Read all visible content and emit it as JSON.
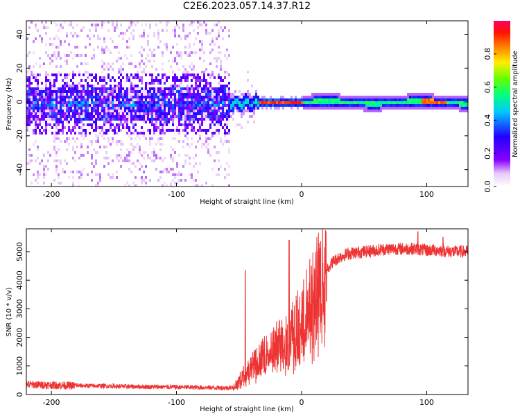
{
  "title": "C2E6.2023.057.14.37.R12",
  "chart_data": [
    {
      "type": "heatmap",
      "xlabel": "Height of straight line (km)",
      "ylabel": "Frequency (Hz)",
      "xlim": [
        -220,
        133
      ],
      "ylim": [
        -50,
        48
      ],
      "x_ticks": [
        -200,
        -100,
        0,
        100
      ],
      "y_ticks": [
        -40,
        -20,
        0,
        20,
        40
      ],
      "colorbar": {
        "label": "Normalized spectral amplitude",
        "range": [
          0,
          1
        ],
        "ticks": [
          0.0,
          0.2,
          0.4,
          0.6,
          0.8
        ]
      },
      "regions": [
        {
          "x_range": [
            -220,
            -58
          ],
          "description": "noise",
          "band_halfwidth_hz": 10,
          "scatter_halfwidth_hz": 48,
          "amplitude": 0.15
        },
        {
          "x_range": [
            -58,
            -35
          ],
          "description": "transition",
          "band_halfwidth_hz": 4,
          "amplitude": 0.4
        },
        {
          "x_range": [
            -35,
            0
          ],
          "description": "strong narrow line",
          "band_halfwidth_hz": 2,
          "amplitude": 0.9
        },
        {
          "x_range": [
            0,
            133
          ],
          "description": "steady line",
          "band_halfwidth_hz": 3,
          "amplitude": 0.5
        }
      ]
    },
    {
      "type": "line",
      "xlabel": "Height of straight line (km)",
      "ylabel": "SNR (10 * v/v)",
      "xlim": [
        -220,
        133
      ],
      "ylim": [
        0,
        5800
      ],
      "x_ticks": [
        -200,
        -100,
        0,
        100
      ],
      "y_ticks": [
        0,
        1000,
        2000,
        3000,
        4000,
        5000
      ],
      "color": "#ee3333",
      "series": [
        {
          "name": "SNR",
          "x": [
            -220,
            -200,
            -180,
            -160,
            -140,
            -120,
            -100,
            -80,
            -60,
            -55,
            -50,
            -45,
            -40,
            -35,
            -30,
            -25,
            -20,
            -15,
            -10,
            -5,
            0,
            5,
            10,
            15,
            20,
            25,
            30,
            35,
            40,
            50,
            60,
            70,
            80,
            90,
            100,
            110,
            120,
            133
          ],
          "y": [
            350,
            330,
            310,
            300,
            280,
            270,
            260,
            245,
            230,
            250,
            500,
            800,
            1000,
            1200,
            1400,
            1600,
            1800,
            2000,
            2200,
            2400,
            2700,
            3200,
            3700,
            4100,
            4400,
            4650,
            4800,
            4900,
            4950,
            5000,
            5050,
            5100,
            5100,
            5100,
            5050,
            5050,
            5000,
            5000
          ]
        }
      ],
      "spikes": [
        {
          "x": -45,
          "y": 4350
        },
        {
          "x": -10,
          "y": 5400
        },
        {
          "x": 93,
          "y": 5700
        },
        {
          "x": 113,
          "y": 5500
        }
      ]
    }
  ]
}
